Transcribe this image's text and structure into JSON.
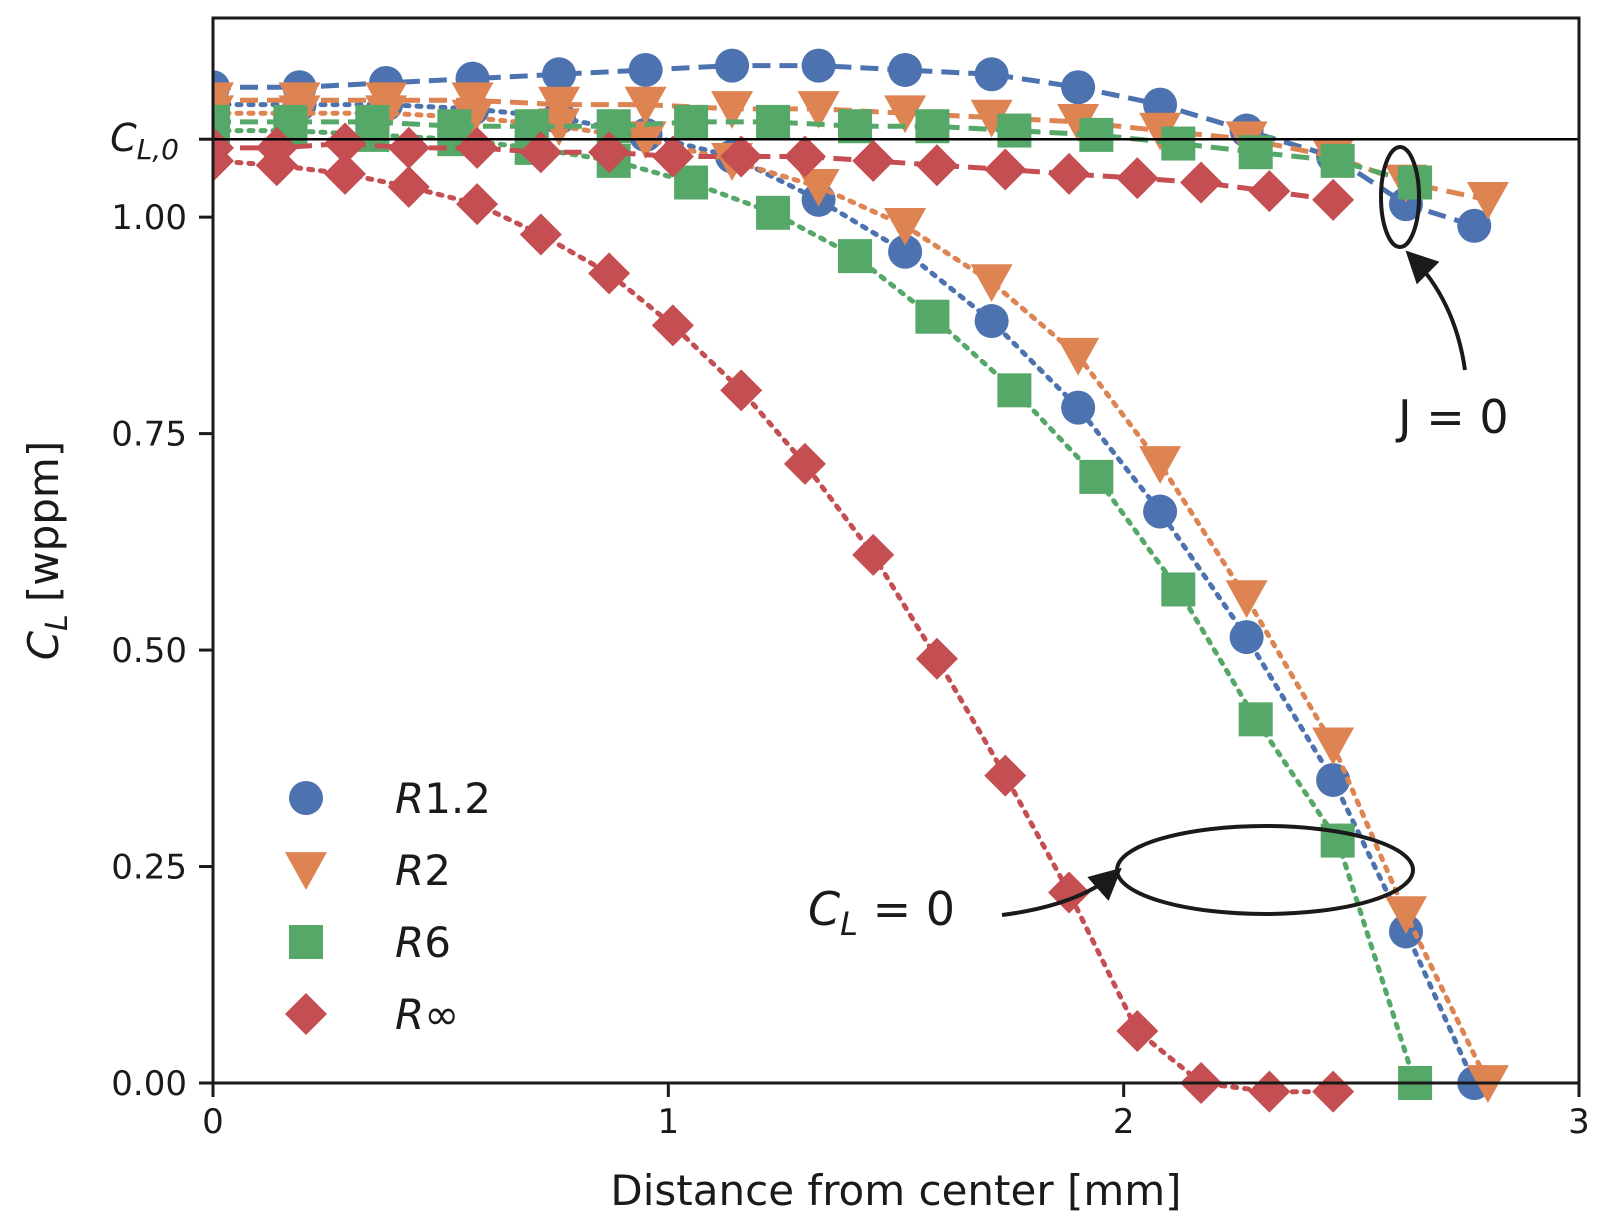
{
  "chart_data": {
    "type": "line",
    "xlabel": "Distance from center [mm]",
    "ylabel_main": "C",
    "ylabel_sub": "L",
    "ylabel_unit": "[wppm]",
    "xlim": [
      0,
      3
    ],
    "ylim": [
      0,
      1.23
    ],
    "x_ticks": [
      0,
      1,
      2,
      3
    ],
    "x_tick_labels": [
      "0",
      "1",
      "2",
      "3"
    ],
    "y_ticks": [
      0,
      0.25,
      0.5,
      0.75,
      1.0
    ],
    "y_tick_labels": [
      "0.00",
      "0.25",
      "0.50",
      "0.75",
      "1.00"
    ],
    "reference_line": {
      "value": 1.09,
      "label_main": "C",
      "label_sub": "L,0"
    },
    "grid": false,
    "legend_position": "lower-left",
    "colors": {
      "R1.2": "#4C72B0",
      "R2": "#DD8452",
      "R6": "#55A868",
      "R∞": "#C44E52"
    },
    "series": [
      {
        "name": "R1.2",
        "legend_main": "R",
        "legend_rest": "1.2",
        "marker": "circle",
        "color": "#4C72B0",
        "bc_J0": {
          "x": [
            0,
            0.19,
            0.38,
            0.57,
            0.76,
            0.95,
            1.14,
            1.33,
            1.52,
            1.71,
            1.9,
            2.08,
            2.27,
            2.46,
            2.62,
            2.77
          ],
          "y": [
            1.15,
            1.15,
            1.155,
            1.16,
            1.165,
            1.17,
            1.175,
            1.175,
            1.17,
            1.165,
            1.15,
            1.13,
            1.1,
            1.07,
            1.015,
            0.99
          ]
        },
        "bc_CL0": {
          "x": [
            0,
            0.19,
            0.38,
            0.57,
            0.76,
            0.95,
            1.14,
            1.33,
            1.52,
            1.71,
            1.9,
            2.08,
            2.27,
            2.46,
            2.62,
            2.77
          ],
          "y": [
            1.13,
            1.13,
            1.13,
            1.125,
            1.115,
            1.095,
            1.07,
            1.02,
            0.96,
            0.88,
            0.78,
            0.66,
            0.515,
            0.35,
            0.175,
            0.0
          ]
        }
      },
      {
        "name": "R2",
        "legend_main": "R",
        "legend_rest": "2",
        "marker": "triangle-down",
        "color": "#DD8452",
        "bc_J0": {
          "x": [
            0,
            0.19,
            0.38,
            0.57,
            0.76,
            0.95,
            1.14,
            1.33,
            1.52,
            1.71,
            1.9,
            2.08,
            2.27,
            2.46,
            2.62,
            2.8
          ],
          "y": [
            1.135,
            1.135,
            1.135,
            1.135,
            1.13,
            1.13,
            1.125,
            1.125,
            1.12,
            1.115,
            1.11,
            1.1,
            1.09,
            1.07,
            1.04,
            1.02
          ]
        },
        "bc_CL0": {
          "x": [
            0,
            0.19,
            0.38,
            0.57,
            0.76,
            0.95,
            1.14,
            1.33,
            1.52,
            1.71,
            1.9,
            2.08,
            2.27,
            2.46,
            2.62,
            2.8
          ],
          "y": [
            1.12,
            1.12,
            1.12,
            1.115,
            1.105,
            1.09,
            1.065,
            1.035,
            0.99,
            0.925,
            0.84,
            0.715,
            0.56,
            0.39,
            0.195,
            0.0
          ]
        }
      },
      {
        "name": "R6",
        "legend_main": "R",
        "legend_rest": "6",
        "marker": "square",
        "color": "#55A868",
        "bc_J0": {
          "x": [
            0,
            0.17,
            0.35,
            0.53,
            0.7,
            0.88,
            1.05,
            1.23,
            1.41,
            1.58,
            1.76,
            1.94,
            2.12,
            2.29,
            2.47,
            2.64
          ],
          "y": [
            1.11,
            1.11,
            1.11,
            1.105,
            1.105,
            1.105,
            1.11,
            1.11,
            1.105,
            1.105,
            1.1,
            1.095,
            1.085,
            1.075,
            1.065,
            1.04
          ]
        },
        "bc_CL0": {
          "x": [
            0,
            0.17,
            0.35,
            0.53,
            0.7,
            0.88,
            1.05,
            1.23,
            1.41,
            1.58,
            1.76,
            1.94,
            2.12,
            2.29,
            2.47,
            2.64
          ],
          "y": [
            1.1,
            1.1,
            1.095,
            1.09,
            1.08,
            1.065,
            1.04,
            1.005,
            0.955,
            0.885,
            0.8,
            0.7,
            0.57,
            0.42,
            0.28,
            0.0
          ]
        }
      },
      {
        "name": "R∞",
        "legend_main": "R",
        "legend_rest": "∞",
        "marker": "diamond",
        "color": "#C44E52",
        "bc_J0": {
          "x": [
            0,
            0.14,
            0.29,
            0.43,
            0.58,
            0.72,
            0.87,
            1.01,
            1.16,
            1.3,
            1.45,
            1.59,
            1.74,
            1.88,
            2.03,
            2.17,
            2.32,
            2.46
          ],
          "y": [
            1.08,
            1.08,
            1.085,
            1.08,
            1.08,
            1.075,
            1.075,
            1.07,
            1.07,
            1.07,
            1.065,
            1.06,
            1.055,
            1.05,
            1.045,
            1.04,
            1.03,
            1.02
          ]
        },
        "bc_CL0": {
          "x": [
            0,
            0.14,
            0.29,
            0.43,
            0.58,
            0.72,
            0.87,
            1.01,
            1.16,
            1.3,
            1.45,
            1.59,
            1.74,
            1.88,
            2.03,
            2.17,
            2.32,
            2.46
          ],
          "y": [
            1.065,
            1.06,
            1.05,
            1.035,
            1.015,
            0.98,
            0.935,
            0.875,
            0.8,
            0.715,
            0.61,
            0.49,
            0.355,
            0.22,
            0.06,
            0.0,
            -0.01,
            -0.01
          ]
        }
      }
    ],
    "annotations": [
      {
        "label": "J = 0",
        "target": "right edge cluster near x ≈ 2.6"
      },
      {
        "label_main": "C",
        "label_sub": "L",
        "label_rest": " = 0",
        "target": "curves near y ≈ 0.25"
      }
    ]
  }
}
